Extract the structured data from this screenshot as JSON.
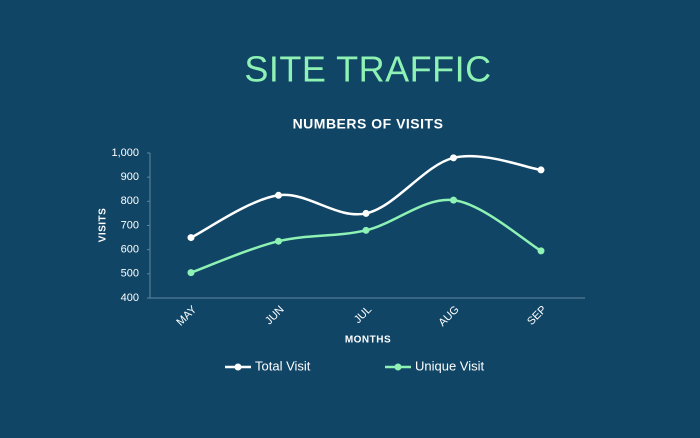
{
  "chart_data": {
    "type": "line",
    "title": "SITE TRAFFIC",
    "subtitle": "NUMBERS OF VISITS",
    "x_label": "MONTHS",
    "y_label": "VISITS",
    "categories": [
      "MAY",
      "JUN",
      "JUL",
      "AUG",
      "SEP"
    ],
    "series": [
      {
        "name": "Total Visit",
        "color": "#ffffff",
        "values": [
          650,
          825,
          750,
          980,
          930
        ]
      },
      {
        "name": "Unique Visit",
        "color": "#8ef2b4",
        "values": [
          505,
          635,
          680,
          805,
          595
        ]
      }
    ],
    "ylim": [
      400,
      1000
    ],
    "yticks": [
      400,
      500,
      600,
      700,
      800,
      900,
      {
        "value": 1000,
        "label": "1,000"
      }
    ],
    "smooth": true,
    "legend": "bottom"
  }
}
